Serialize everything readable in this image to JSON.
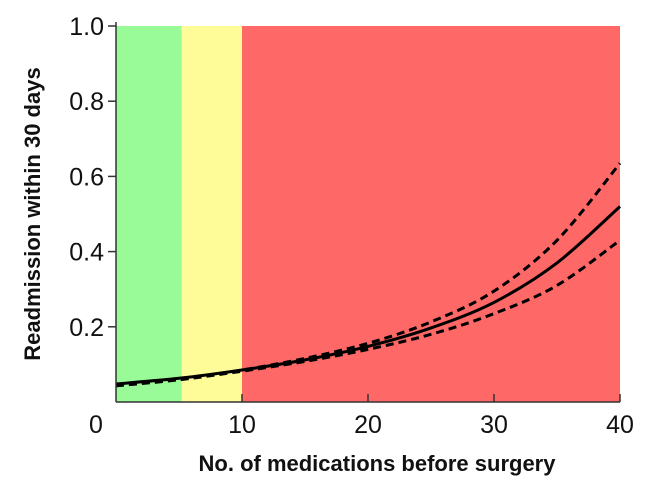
{
  "chart_data": {
    "type": "line",
    "title": "",
    "xlabel": "No. of medications before surgery",
    "ylabel": "Readmission within 30 days",
    "xlim": [
      0,
      40
    ],
    "ylim": [
      0,
      1.0
    ],
    "x_ticks": [
      "0",
      "10",
      "20",
      "30",
      "40"
    ],
    "y_ticks": [
      "0.2",
      "0.4",
      "0.6",
      "0.8",
      "1.0"
    ],
    "grid": false,
    "legend": "none",
    "bands": [
      {
        "from": 0,
        "to": 5.2,
        "color": "#99fb97"
      },
      {
        "from": 5.2,
        "to": 10,
        "color": "#fefb99"
      },
      {
        "from": 10,
        "to": 40,
        "color": "#fe6866"
      }
    ],
    "x": [
      0,
      5,
      10,
      15,
      20,
      25,
      30,
      35,
      40
    ],
    "series": [
      {
        "style": "solid",
        "color": "#000000",
        "values": [
          0.048,
          0.063,
          0.085,
          0.112,
          0.148,
          0.197,
          0.265,
          0.37,
          0.52
        ]
      },
      {
        "style": "dashed",
        "color": "#000000",
        "values": [
          0.043,
          0.061,
          0.085,
          0.116,
          0.156,
          0.213,
          0.295,
          0.43,
          0.635
        ]
      },
      {
        "style": "dashed",
        "color": "#000000",
        "values": [
          0.043,
          0.059,
          0.082,
          0.108,
          0.14,
          0.18,
          0.235,
          0.31,
          0.43
        ]
      }
    ]
  }
}
